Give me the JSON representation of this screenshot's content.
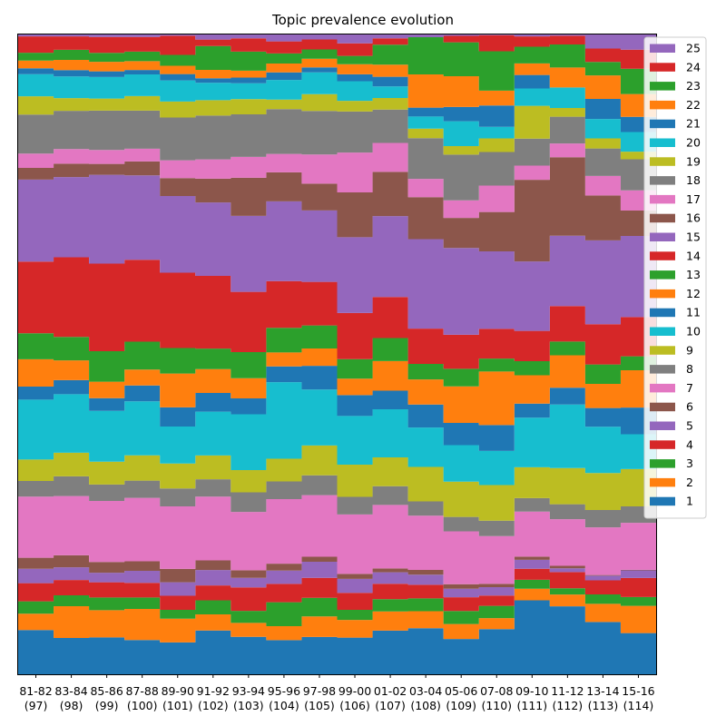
{
  "chart_data": {
    "type": "area",
    "style": "stacked-step",
    "title": "Topic prevalence evolution",
    "xlabel": "",
    "ylabel": "",
    "ylim": [
      0,
      1
    ],
    "y_ticks_visible": false,
    "legend_position": "upper-right",
    "legend_order": "reversed",
    "categories": [
      "81-82",
      "83-84",
      "85-86",
      "87-88",
      "89-90",
      "91-92",
      "93-94",
      "95-96",
      "97-98",
      "99-00",
      "01-02",
      "03-04",
      "05-06",
      "07-08",
      "09-10",
      "11-12",
      "13-14",
      "15-16"
    ],
    "sublabels": [
      "(97)",
      "(98)",
      "(99)",
      "(100)",
      "(101)",
      "(102)",
      "(103)",
      "(104)",
      "(105)",
      "(106)",
      "(107)",
      "(108)",
      "(109)",
      "(110)",
      "(111)",
      "(112)",
      "(113)",
      "(114)"
    ],
    "series": [
      {
        "name": "1",
        "color": "#1f77b4",
        "values": [
          0.068,
          0.057,
          0.058,
          0.054,
          0.05,
          0.068,
          0.059,
          0.054,
          0.06,
          0.058,
          0.068,
          0.068,
          0.054,
          0.07,
          0.115,
          0.109,
          0.078,
          0.065
        ]
      },
      {
        "name": "2",
        "color": "#ff7f0e",
        "values": [
          0.025,
          0.05,
          0.043,
          0.049,
          0.037,
          0.025,
          0.022,
          0.022,
          0.033,
          0.028,
          0.03,
          0.025,
          0.023,
          0.017,
          0.018,
          0.019,
          0.027,
          0.043
        ]
      },
      {
        "name": "3",
        "color": "#2ca02c",
        "values": [
          0.019,
          0.017,
          0.02,
          0.018,
          0.014,
          0.022,
          0.019,
          0.038,
          0.03,
          0.016,
          0.019,
          0.019,
          0.02,
          0.019,
          0.014,
          0.01,
          0.014,
          0.014
        ]
      },
      {
        "name": "4",
        "color": "#d62728",
        "values": [
          0.028,
          0.024,
          0.024,
          0.023,
          0.022,
          0.023,
          0.037,
          0.029,
          0.032,
          0.027,
          0.024,
          0.02,
          0.021,
          0.016,
          0.017,
          0.026,
          0.021,
          0.03
        ]
      },
      {
        "name": "5",
        "color": "#9467bd",
        "values": [
          0.022,
          0.02,
          0.015,
          0.019,
          0.021,
          0.024,
          0.015,
          0.021,
          0.026,
          0.022,
          0.018,
          0.015,
          0.013,
          0.013,
          0.014,
          0.006,
          0.007,
          0.012
        ]
      },
      {
        "name": "6",
        "color": "#8c564b",
        "values": [
          0.017,
          0.019,
          0.017,
          0.015,
          0.021,
          0.015,
          0.012,
          0.011,
          0.008,
          0.008,
          0.006,
          0.007,
          0.007,
          0.005,
          0.005,
          0.004,
          0.001,
          0.001
        ]
      },
      {
        "name": "7",
        "color": "#e377c2",
        "values": [
          0.094,
          0.093,
          0.096,
          0.1,
          0.098,
          0.099,
          0.092,
          0.102,
          0.099,
          0.094,
          0.099,
          0.08,
          0.081,
          0.074,
          0.07,
          0.075,
          0.071,
          0.074
        ]
      },
      {
        "name": "8",
        "color": "#7f7f7f",
        "values": [
          0.024,
          0.031,
          0.026,
          0.027,
          0.028,
          0.027,
          0.031,
          0.028,
          0.032,
          0.028,
          0.029,
          0.021,
          0.022,
          0.024,
          0.021,
          0.024,
          0.026,
          0.026
        ]
      },
      {
        "name": "9",
        "color": "#bcbd22",
        "values": [
          0.033,
          0.037,
          0.036,
          0.04,
          0.039,
          0.037,
          0.035,
          0.036,
          0.048,
          0.051,
          0.045,
          0.051,
          0.054,
          0.055,
          0.048,
          0.058,
          0.055,
          0.059
        ]
      },
      {
        "name": "10",
        "color": "#17becf",
        "values": [
          0.092,
          0.092,
          0.08,
          0.085,
          0.058,
          0.068,
          0.088,
          0.121,
          0.09,
          0.077,
          0.075,
          0.058,
          0.056,
          0.053,
          0.077,
          0.102,
          0.069,
          0.055
        ]
      },
      {
        "name": "11",
        "color": "#1f77b4",
        "values": [
          0.02,
          0.022,
          0.02,
          0.025,
          0.03,
          0.029,
          0.025,
          0.025,
          0.038,
          0.033,
          0.029,
          0.034,
          0.034,
          0.04,
          0.022,
          0.027,
          0.028,
          0.042
        ]
      },
      {
        "name": "12",
        "color": "#ff7f0e",
        "values": [
          0.042,
          0.031,
          0.026,
          0.025,
          0.053,
          0.037,
          0.032,
          0.022,
          0.028,
          0.026,
          0.046,
          0.037,
          0.056,
          0.083,
          0.044,
          0.052,
          0.036,
          0.059
        ]
      },
      {
        "name": "13",
        "color": "#2ca02c",
        "values": [
          0.04,
          0.037,
          0.048,
          0.044,
          0.04,
          0.032,
          0.041,
          0.039,
          0.037,
          0.031,
          0.036,
          0.023,
          0.027,
          0.02,
          0.022,
          0.022,
          0.029,
          0.022
        ]
      },
      {
        "name": "14",
        "color": "#d62728",
        "values": [
          0.11,
          0.125,
          0.138,
          0.129,
          0.118,
          0.113,
          0.095,
          0.074,
          0.07,
          0.073,
          0.064,
          0.052,
          0.052,
          0.046,
          0.047,
          0.057,
          0.06,
          0.062
        ]
      },
      {
        "name": "15",
        "color": "#9467bd",
        "values": [
          0.126,
          0.126,
          0.14,
          0.133,
          0.12,
          0.114,
          0.12,
          0.126,
          0.115,
          0.12,
          0.126,
          0.132,
          0.133,
          0.12,
          0.108,
          0.113,
          0.125,
          0.128
        ]
      },
      {
        "name": "16",
        "color": "#8c564b",
        "values": [
          0.018,
          0.021,
          0.017,
          0.022,
          0.028,
          0.037,
          0.06,
          0.046,
          0.043,
          0.071,
          0.069,
          0.062,
          0.046,
          0.061,
          0.127,
          0.126,
          0.067,
          0.04
        ]
      },
      {
        "name": "17",
        "color": "#e377c2",
        "values": [
          0.022,
          0.023,
          0.022,
          0.02,
          0.028,
          0.03,
          0.033,
          0.029,
          0.047,
          0.063,
          0.045,
          0.027,
          0.027,
          0.041,
          0.022,
          0.022,
          0.029,
          0.032
        ]
      },
      {
        "name": "18",
        "color": "#7f7f7f",
        "values": [
          0.06,
          0.06,
          0.062,
          0.06,
          0.067,
          0.068,
          0.067,
          0.071,
          0.07,
          0.065,
          0.052,
          0.06,
          0.07,
          0.052,
          0.042,
          0.043,
          0.041,
          0.049
        ]
      },
      {
        "name": "19",
        "color": "#bcbd22",
        "values": [
          0.028,
          0.02,
          0.019,
          0.023,
          0.025,
          0.024,
          0.024,
          0.015,
          0.027,
          0.017,
          0.018,
          0.014,
          0.013,
          0.021,
          0.051,
          0.014,
          0.015,
          0.012
        ]
      },
      {
        "name": "20",
        "color": "#17becf",
        "values": [
          0.034,
          0.034,
          0.034,
          0.034,
          0.033,
          0.027,
          0.025,
          0.031,
          0.035,
          0.031,
          0.018,
          0.018,
          0.038,
          0.018,
          0.027,
          0.033,
          0.029,
          0.031
        ]
      },
      {
        "name": "21",
        "color": "#1f77b4",
        "values": [
          0.009,
          0.01,
          0.009,
          0.007,
          0.01,
          0.007,
          0.009,
          0.012,
          0.008,
          0.011,
          0.015,
          0.013,
          0.022,
          0.033,
          0.021,
          0.0,
          0.03,
          0.024
        ]
      },
      {
        "name": "22",
        "color": "#ff7f0e",
        "values": [
          0.012,
          0.016,
          0.015,
          0.014,
          0.013,
          0.013,
          0.011,
          0.014,
          0.014,
          0.016,
          0.019,
          0.049,
          0.047,
          0.023,
          0.018,
          0.032,
          0.035,
          0.036
        ]
      },
      {
        "name": "23",
        "color": "#2ca02c",
        "values": [
          0.012,
          0.016,
          0.014,
          0.015,
          0.017,
          0.037,
          0.03,
          0.016,
          0.015,
          0.013,
          0.031,
          0.055,
          0.052,
          0.061,
          0.026,
          0.037,
          0.02,
          0.04
        ]
      },
      {
        "name": "24",
        "color": "#d62728",
        "values": [
          0.025,
          0.021,
          0.025,
          0.023,
          0.03,
          0.01,
          0.021,
          0.019,
          0.016,
          0.02,
          0.01,
          0.0,
          0.01,
          0.025,
          0.016,
          0.014,
          0.02,
          0.03
        ]
      },
      {
        "name": "25",
        "color": "#9467bd",
        "values": [
          0.003,
          0.003,
          0.004,
          0.004,
          0.002,
          0.008,
          0.006,
          0.011,
          0.008,
          0.014,
          0.006,
          0.004,
          0.002,
          0.001,
          0.003,
          0.002,
          0.021,
          0.024
        ]
      }
    ]
  }
}
